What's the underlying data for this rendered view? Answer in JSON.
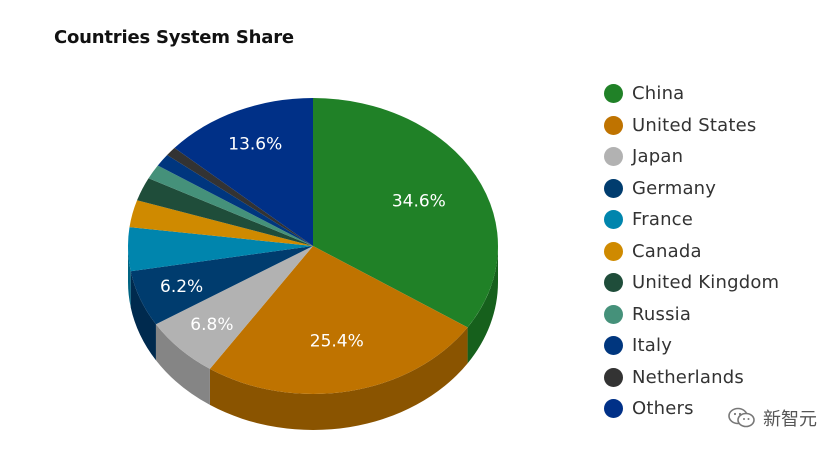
{
  "chart_data": {
    "type": "pie",
    "title": "Countries System Share",
    "series": [
      {
        "name": "China",
        "value": 34.6,
        "color": "#208127",
        "side": "#16601c",
        "label": "34.6%"
      },
      {
        "name": "United States",
        "value": 25.4,
        "color": "#bf7300",
        "side": "#8a5400",
        "label": "25.4%"
      },
      {
        "name": "Japan",
        "value": 6.8,
        "color": "#b2b2b2",
        "side": "#858585",
        "label": "6.8%"
      },
      {
        "name": "Germany",
        "value": 6.2,
        "color": "#003c6e",
        "side": "#002a4e",
        "label": "6.2%"
      },
      {
        "name": "France",
        "value": 4.8,
        "color": "#0085ad",
        "side": "#006482",
        "label": ""
      },
      {
        "name": "Canada",
        "value": 3.0,
        "color": "#cf8a00",
        "side": "#9a6600",
        "label": ""
      },
      {
        "name": "United Kingdom",
        "value": 2.6,
        "color": "#1f4d3a",
        "side": "#153629",
        "label": ""
      },
      {
        "name": "Russia",
        "value": 1.6,
        "color": "#45917a",
        "side": "#326b5a",
        "label": ""
      },
      {
        "name": "Italy",
        "value": 1.4,
        "color": "#00367e",
        "side": "#00255a",
        "label": ""
      },
      {
        "name": "Netherlands",
        "value": 1.0,
        "color": "#333333",
        "side": "#222222",
        "label": ""
      },
      {
        "name": "Others",
        "value": 13.6,
        "color": "#003087",
        "side": "#002060",
        "label": "13.6%"
      }
    ],
    "legend": "right"
  },
  "watermark": {
    "text": "新智元",
    "icon": "wechat-icon"
  }
}
